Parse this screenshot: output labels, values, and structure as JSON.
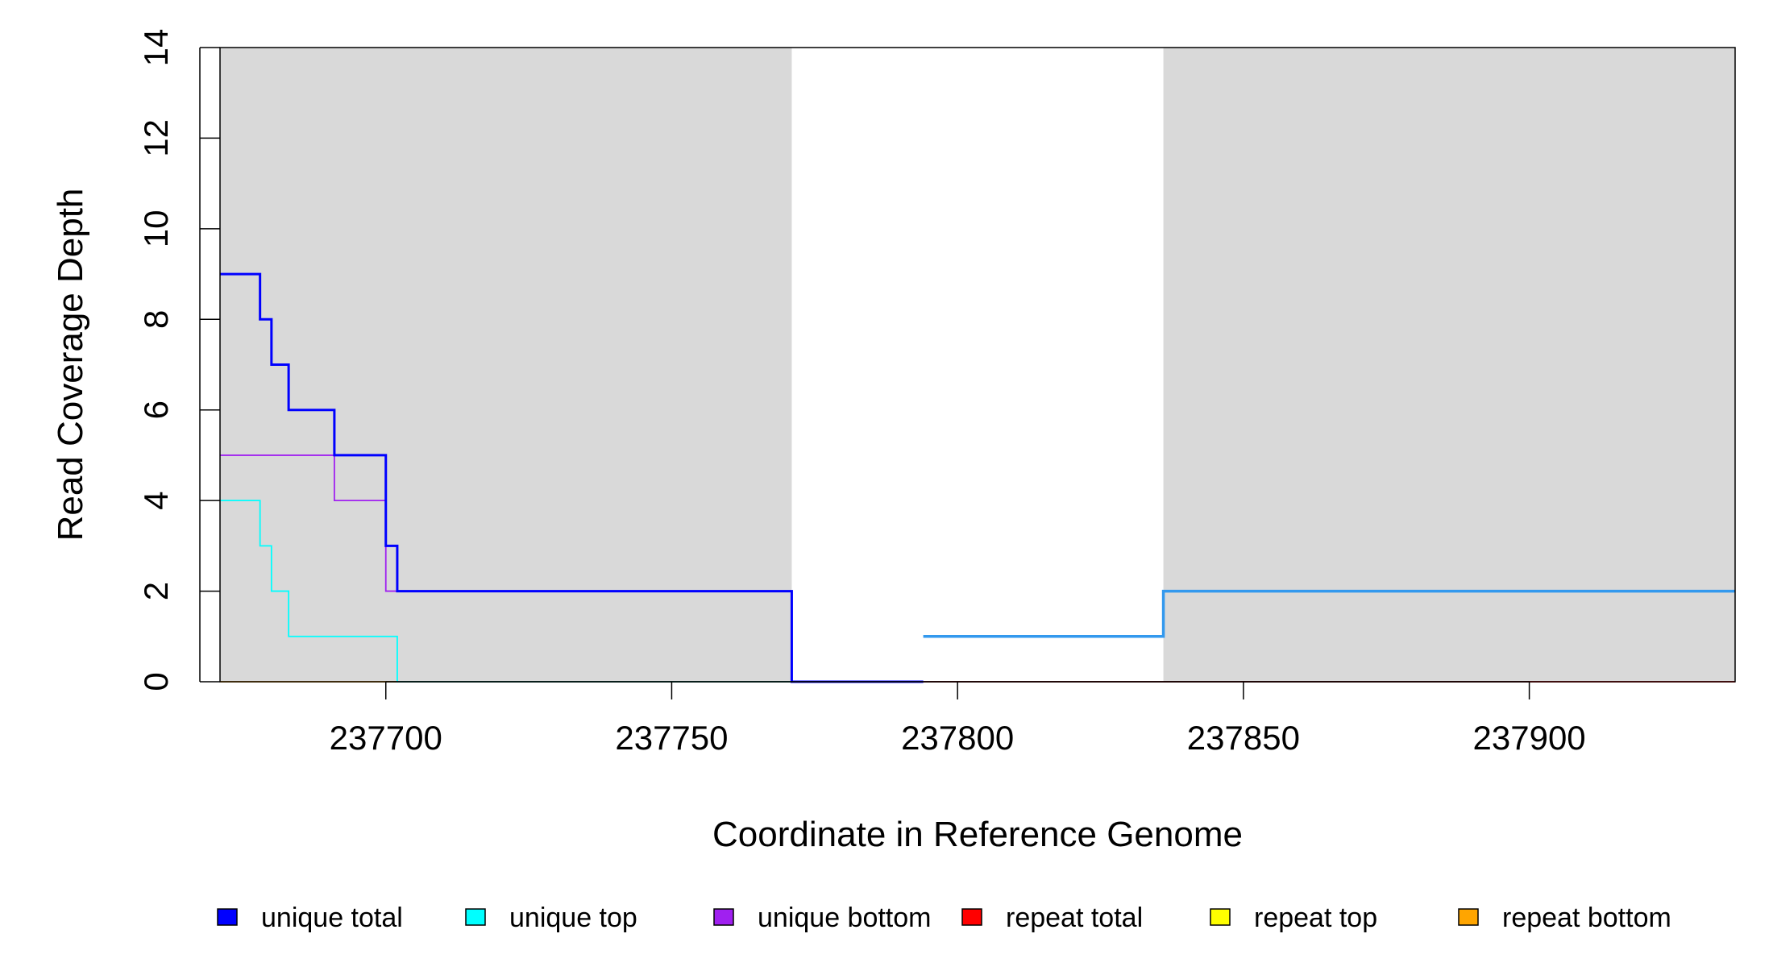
{
  "chart_data": {
    "type": "line",
    "title": "",
    "xlabel": "Coordinate in Reference Genome",
    "ylabel": "Read Coverage Depth",
    "xlim": [
      237671,
      237936
    ],
    "ylim": [
      0,
      14
    ],
    "x_ticks": [
      237700,
      237750,
      237800,
      237850,
      237900
    ],
    "y_ticks": [
      0,
      2,
      4,
      6,
      8,
      10,
      12,
      14
    ],
    "grid": false,
    "shaded_regions": [
      {
        "x0": 237671,
        "x1": 237771,
        "color": "#d9d9d9"
      },
      {
        "x0": 237836,
        "x1": 237936,
        "color": "#d9d9d9"
      }
    ],
    "series": [
      {
        "name": "unique total",
        "color": "#0000ff",
        "step": true,
        "points": [
          [
            237671,
            9
          ],
          [
            237678,
            8
          ],
          [
            237680,
            7
          ],
          [
            237683,
            6
          ],
          [
            237691,
            5
          ],
          [
            237700,
            3
          ],
          [
            237702,
            2
          ],
          [
            237771,
            0
          ],
          [
            237794,
            0
          ]
        ]
      },
      {
        "name": "unique top",
        "color": "#00ffff",
        "step": true,
        "points": [
          [
            237671,
            4
          ],
          [
            237678,
            3
          ],
          [
            237680,
            2
          ],
          [
            237683,
            1
          ],
          [
            237702,
            0
          ],
          [
            237771,
            0
          ]
        ]
      },
      {
        "name": "unique bottom",
        "color": "#a020f0",
        "step": true,
        "points": [
          [
            237671,
            5
          ],
          [
            237691,
            4
          ],
          [
            237700,
            2
          ],
          [
            237771,
            0
          ],
          [
            237794,
            0
          ]
        ]
      },
      {
        "name": "repeat total",
        "color": "#ff0000",
        "step": true,
        "points": [
          [
            237794,
            0
          ],
          [
            237936,
            0
          ]
        ]
      },
      {
        "name": "repeat top",
        "color": "#ffff00",
        "step": true,
        "points": []
      },
      {
        "name": "repeat bottom",
        "color": "#ffa500",
        "step": true,
        "points": [
          [
            237671,
            0
          ],
          [
            237771,
            0
          ]
        ]
      }
    ],
    "extra_lines": [
      {
        "color": "#3399ee",
        "step": true,
        "points": [
          [
            237794,
            1
          ],
          [
            237836,
            2
          ],
          [
            237936,
            2
          ]
        ]
      }
    ],
    "legend_placement": "bottom"
  }
}
